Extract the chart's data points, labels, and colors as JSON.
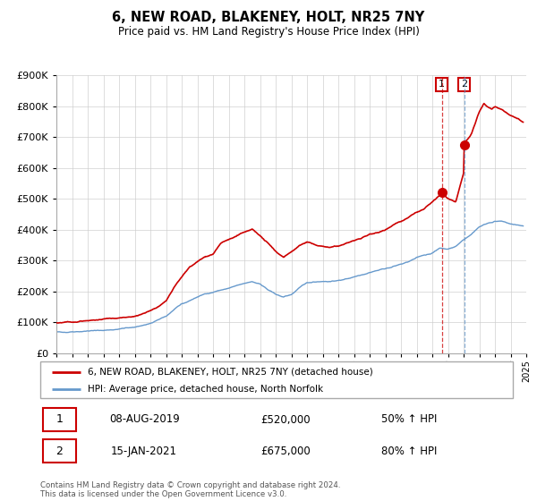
{
  "title": "6, NEW ROAD, BLAKENEY, HOLT, NR25 7NY",
  "subtitle": "Price paid vs. HM Land Registry's House Price Index (HPI)",
  "legend_line1": "6, NEW ROAD, BLAKENEY, HOLT, NR25 7NY (detached house)",
  "legend_line2": "HPI: Average price, detached house, North Norfolk",
  "sale1_date": "08-AUG-2019",
  "sale1_price": "£520,000",
  "sale1_pct": "50% ↑ HPI",
  "sale2_date": "15-JAN-2021",
  "sale2_price": "£675,000",
  "sale2_pct": "80% ↑ HPI",
  "footer": "Contains HM Land Registry data © Crown copyright and database right 2024.\nThis data is licensed under the Open Government Licence v3.0.",
  "red_color": "#cc0000",
  "blue_color": "#6699cc",
  "vline1_x": 2019.6,
  "vline2_x": 2021.04,
  "marker1_x": 2019.6,
  "marker1_y": 520000,
  "marker2_x": 2021.04,
  "marker2_y": 675000,
  "ylim": [
    0,
    900000
  ],
  "xlim_start": 1995,
  "xlim_end": 2025,
  "blue_anchors_x": [
    1995.0,
    1996.0,
    1997.0,
    1998.0,
    1999.0,
    2000.0,
    2001.0,
    2002.0,
    2002.5,
    2003.0,
    2003.5,
    2004.0,
    2004.5,
    2005.0,
    2006.0,
    2007.0,
    2007.5,
    2008.0,
    2008.5,
    2009.0,
    2009.5,
    2010.0,
    2010.5,
    2011.0,
    2011.5,
    2012.0,
    2012.5,
    2013.0,
    2013.5,
    2014.0,
    2014.5,
    2015.0,
    2015.5,
    2016.0,
    2016.5,
    2017.0,
    2017.5,
    2018.0,
    2018.5,
    2019.0,
    2019.5,
    2020.0,
    2020.5,
    2021.0,
    2021.5,
    2022.0,
    2022.5,
    2023.0,
    2023.5,
    2024.0,
    2024.8
  ],
  "blue_anchors_y": [
    68000,
    70000,
    72000,
    74000,
    78000,
    85000,
    95000,
    120000,
    140000,
    158000,
    170000,
    182000,
    192000,
    198000,
    210000,
    225000,
    232000,
    225000,
    205000,
    190000,
    182000,
    190000,
    210000,
    228000,
    232000,
    233000,
    232000,
    235000,
    240000,
    248000,
    255000,
    262000,
    268000,
    274000,
    280000,
    288000,
    296000,
    308000,
    318000,
    325000,
    340000,
    338000,
    345000,
    368000,
    385000,
    410000,
    420000,
    428000,
    425000,
    418000,
    412000
  ],
  "red_anchors_x": [
    1995.0,
    1996.0,
    1997.0,
    1998.0,
    1999.0,
    2000.0,
    2001.0,
    2002.0,
    2002.5,
    2003.0,
    2003.5,
    2004.0,
    2004.5,
    2005.0,
    2005.5,
    2006.0,
    2006.5,
    2007.0,
    2007.5,
    2008.0,
    2008.5,
    2009.0,
    2009.5,
    2010.0,
    2010.5,
    2011.0,
    2011.5,
    2012.0,
    2012.5,
    2013.0,
    2013.5,
    2014.0,
    2014.5,
    2015.0,
    2015.5,
    2016.0,
    2016.5,
    2017.0,
    2017.5,
    2018.0,
    2018.5,
    2019.0,
    2019.5,
    2019.6,
    2020.0,
    2020.5,
    2021.0,
    2021.04,
    2021.5,
    2022.0,
    2022.3,
    2022.5,
    2022.8,
    2023.0,
    2023.5,
    2024.0,
    2024.5,
    2024.8
  ],
  "red_anchors_y": [
    98000,
    100000,
    105000,
    108000,
    112000,
    120000,
    135000,
    170000,
    210000,
    245000,
    278000,
    295000,
    312000,
    322000,
    355000,
    368000,
    378000,
    390000,
    400000,
    382000,
    355000,
    330000,
    312000,
    328000,
    348000,
    358000,
    352000,
    346000,
    342000,
    347000,
    355000,
    364000,
    374000,
    384000,
    393000,
    400000,
    414000,
    425000,
    440000,
    454000,
    468000,
    488000,
    510000,
    520000,
    500000,
    490000,
    580000,
    675000,
    710000,
    780000,
    810000,
    800000,
    790000,
    798000,
    788000,
    770000,
    760000,
    748000
  ]
}
